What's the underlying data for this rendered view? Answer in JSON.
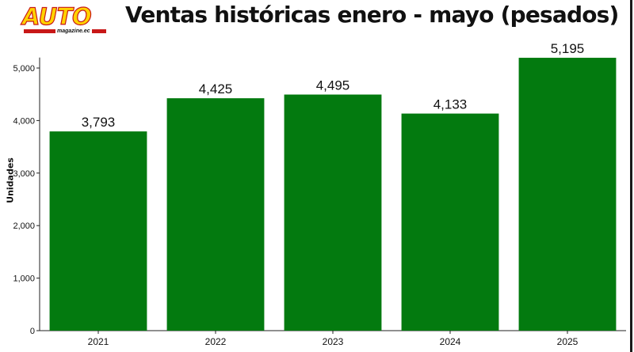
{
  "header": {
    "logo_text": "AUTO",
    "logo_subtext": "magazine.ec",
    "title": "Ventas históricas enero - mayo (pesados)"
  },
  "colors": {
    "bar": "#037a0f",
    "text": "#111111"
  },
  "chart_data": {
    "type": "bar",
    "categories": [
      "2021",
      "2022",
      "2023",
      "2024",
      "2025"
    ],
    "values": [
      3793,
      4425,
      4495,
      4133,
      5195
    ],
    "value_labels": [
      "3,793",
      "4,425",
      "4,495",
      "4,133",
      "5,195"
    ],
    "title": "Ventas históricas enero - mayo (pesados)",
    "xlabel": "",
    "ylabel": "Unidades",
    "ylim": [
      0,
      5200
    ],
    "yticks": [
      0,
      1000,
      2000,
      3000,
      4000,
      5000
    ],
    "ytick_labels": [
      "0",
      "1,000",
      "2,000",
      "3,000",
      "4,000",
      "5,000"
    ],
    "grid": false,
    "legend": "none"
  }
}
